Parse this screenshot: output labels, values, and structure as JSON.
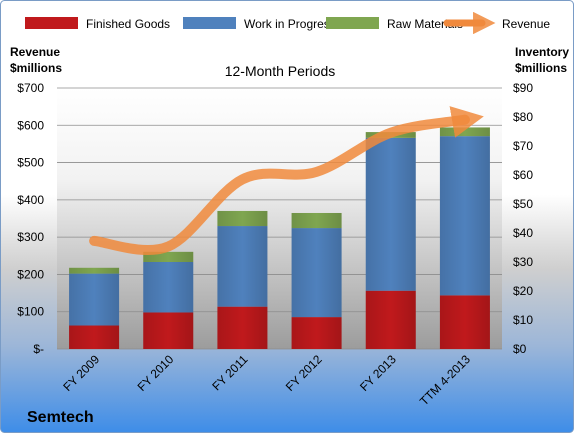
{
  "chart_data": {
    "type": "bar",
    "subtitle": "12-Month Periods",
    "company": "Semtech",
    "left_axis_title": [
      "Revenue",
      "$millions"
    ],
    "right_axis_title": [
      "Inventory",
      "$millions"
    ],
    "categories": [
      "FY 2009",
      "FY 2010",
      "FY 2011",
      "FY 2012",
      "FY 2013",
      "TTM 4-2013"
    ],
    "left_ticks": [
      "$-",
      "$100",
      "$200",
      "$300",
      "$400",
      "$500",
      "$600",
      "$700"
    ],
    "right_ticks": [
      "$0",
      "$10",
      "$20",
      "$30",
      "$40",
      "$50",
      "$60",
      "$70",
      "$80",
      "$90"
    ],
    "left_ylim": [
      0,
      700
    ],
    "right_ylim": [
      0,
      90
    ],
    "stack_series": [
      {
        "name": "Finished Goods",
        "color": "#C0191C",
        "values": [
          8.1,
          12.6,
          14.6,
          11.0,
          20.1,
          18.5
        ]
      },
      {
        "name": "Work in Progress",
        "color": "#4F81BD",
        "values": [
          17.9,
          17.4,
          27.8,
          30.7,
          52.7,
          54.9
        ]
      },
      {
        "name": "Raw Materials",
        "color": "#7FA650",
        "values": [
          2.0,
          3.5,
          5.2,
          5.2,
          2.0,
          3.0
        ]
      }
    ],
    "line_series": {
      "name": "Revenue",
      "color": "#F0893C",
      "axis": "left",
      "values": [
        290,
        275,
        455,
        475,
        580,
        615
      ]
    },
    "legend_position": "top"
  }
}
